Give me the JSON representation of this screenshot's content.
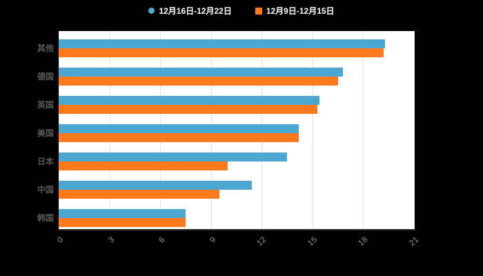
{
  "chart_data": {
    "type": "bar",
    "orientation": "horizontal",
    "title": "",
    "xlabel": "",
    "ylabel": "",
    "xlim": [
      0,
      21
    ],
    "x_ticks": [
      0,
      3,
      6,
      9,
      12,
      15,
      18,
      21
    ],
    "grid": true,
    "legend_position": "top",
    "categories": [
      "其他",
      "德国",
      "英国",
      "美国",
      "日本",
      "中国",
      "韩国"
    ],
    "series": [
      {
        "name": "12月16日-12月22日",
        "color": "#4da7d3",
        "marker": "circle",
        "values": [
          19.3,
          16.8,
          15.4,
          14.2,
          13.5,
          11.4,
          7.5
        ]
      },
      {
        "name": "12月9日-12月15日",
        "color": "#ff7a1c",
        "marker": "square",
        "values": [
          19.2,
          16.5,
          15.3,
          14.2,
          10.0,
          9.5,
          7.5
        ]
      }
    ]
  },
  "colors": {
    "background": "#000000",
    "plot_background": "#ffffff",
    "gridline": "#e3e3e3",
    "axis_line": "#2a2a2a",
    "category_label": "#595959",
    "tick_label": "#8a8a8a",
    "legend_text": "#ffffff"
  }
}
